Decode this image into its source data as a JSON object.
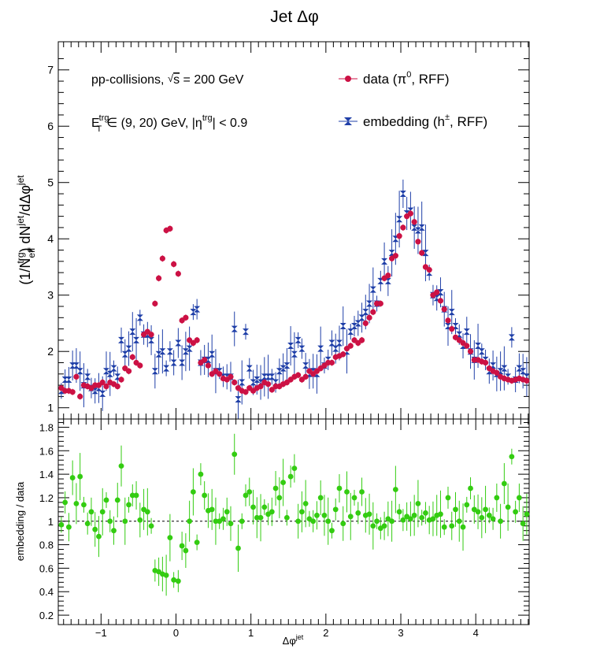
{
  "title": "Jet Δφ",
  "legend": {
    "data_label": "data (π⁰, RFF)",
    "embed_label": "embedding (h±, RFF)"
  },
  "annotations": {
    "line1": "pp-collisions, √s = 200 GeV",
    "line2": "E_T^trg ∈ (9, 20) GeV, |η^trg| < 0.9"
  },
  "colors": {
    "data": "#cc1144",
    "embed": "#1f3fa8",
    "ratio": "#33cc11"
  },
  "chart_data": [
    {
      "type": "scatter",
      "title": "Jet Δφ",
      "xlabel": "Δφ^jet",
      "ylabel": "(1/N_eff^trg) dN^jet/dΔφ^jet",
      "xlim": [
        -1.5708,
        4.7124
      ],
      "ylim": [
        0.8,
        7.5
      ],
      "x_ticks": [
        "−1",
        "0",
        "1",
        "2",
        "3",
        "4"
      ],
      "y_ticks": [
        "1",
        "2",
        "3",
        "4",
        "5",
        "6",
        "7"
      ],
      "legend_position": "top-right",
      "series": [
        {
          "name": "data (π⁰, RFF)",
          "x": [
            -1.53,
            -1.48,
            -1.43,
            -1.38,
            -1.33,
            -1.28,
            -1.23,
            -1.18,
            -1.13,
            -1.08,
            -1.03,
            -0.98,
            -0.93,
            -0.88,
            -0.83,
            -0.78,
            -0.73,
            -0.68,
            -0.63,
            -0.58,
            -0.53,
            -0.48,
            -0.43,
            -0.38,
            -0.33,
            -0.28,
            -0.23,
            -0.18,
            -0.13,
            -0.08,
            -0.03,
            0.03,
            0.08,
            0.13,
            0.18,
            0.23,
            0.28,
            0.33,
            0.38,
            0.43,
            0.48,
            0.53,
            0.58,
            0.63,
            0.68,
            0.73,
            0.78,
            0.83,
            0.88,
            0.93,
            0.98,
            1.03,
            1.08,
            1.13,
            1.18,
            1.23,
            1.28,
            1.33,
            1.38,
            1.43,
            1.48,
            1.53,
            1.58,
            1.63,
            1.68,
            1.73,
            1.78,
            1.83,
            1.88,
            1.93,
            1.98,
            2.03,
            2.08,
            2.13,
            2.18,
            2.23,
            2.28,
            2.33,
            2.38,
            2.43,
            2.48,
            2.53,
            2.58,
            2.63,
            2.68,
            2.73,
            2.78,
            2.83,
            2.88,
            2.93,
            2.98,
            3.03,
            3.08,
            3.13,
            3.18,
            3.23,
            3.28,
            3.33,
            3.38,
            3.43,
            3.48,
            3.53,
            3.58,
            3.63,
            3.68,
            3.73,
            3.78,
            3.83,
            3.88,
            3.93,
            3.98,
            4.03,
            4.08,
            4.13,
            4.18,
            4.23,
            4.28,
            4.33,
            4.38,
            4.43,
            4.48,
            4.53,
            4.58,
            4.63,
            4.68
          ],
          "y": [
            1.35,
            1.3,
            1.3,
            1.28,
            1.55,
            1.2,
            1.4,
            1.38,
            1.35,
            1.4,
            1.4,
            1.45,
            1.38,
            1.45,
            1.42,
            1.38,
            1.5,
            1.7,
            1.65,
            1.9,
            1.8,
            1.75,
            2.3,
            2.35,
            2.3,
            2.85,
            3.3,
            3.65,
            4.15,
            4.18,
            3.55,
            3.38,
            2.55,
            2.6,
            2.2,
            2.15,
            2.2,
            1.8,
            1.85,
            1.75,
            1.6,
            1.65,
            1.6,
            1.52,
            1.5,
            1.55,
            1.45,
            1.35,
            1.3,
            1.28,
            1.35,
            1.3,
            1.35,
            1.38,
            1.45,
            1.42,
            1.32,
            1.38,
            1.38,
            1.42,
            1.45,
            1.5,
            1.55,
            1.58,
            1.5,
            1.55,
            1.65,
            1.6,
            1.65,
            1.7,
            1.75,
            1.8,
            1.8,
            1.9,
            1.92,
            1.95,
            2.05,
            2.1,
            2.2,
            2.15,
            2.2,
            2.5,
            2.6,
            2.7,
            2.85,
            2.85,
            3.3,
            3.35,
            3.65,
            3.7,
            4.05,
            4.2,
            4.4,
            4.45,
            4.3,
            3.95,
            3.75,
            3.5,
            3.45,
            3.0,
            3.05,
            2.9,
            2.75,
            2.55,
            2.4,
            2.25,
            2.2,
            2.15,
            2.1,
            2.0,
            1.85,
            1.85,
            1.82,
            1.8,
            1.7,
            1.65,
            1.62,
            1.55,
            1.52,
            1.5,
            1.48,
            1.5,
            1.52,
            1.5,
            1.48
          ]
        },
        {
          "name": "embedding (h±, RFF)",
          "x": [
            -1.53,
            -1.48,
            -1.43,
            -1.38,
            -1.33,
            -1.28,
            -1.23,
            -1.18,
            -1.13,
            -1.08,
            -1.03,
            -0.98,
            -0.93,
            -0.88,
            -0.83,
            -0.78,
            -0.73,
            -0.68,
            -0.63,
            -0.58,
            -0.53,
            -0.48,
            -0.43,
            -0.38,
            -0.33,
            -0.28,
            -0.23,
            -0.18,
            -0.13,
            -0.08,
            -0.03,
            0.03,
            0.08,
            0.13,
            0.18,
            0.23,
            0.28,
            0.33,
            0.38,
            0.43,
            0.48,
            0.53,
            0.58,
            0.63,
            0.68,
            0.73,
            0.78,
            0.83,
            0.88,
            0.93,
            0.98,
            1.03,
            1.08,
            1.13,
            1.18,
            1.23,
            1.28,
            1.33,
            1.38,
            1.43,
            1.48,
            1.53,
            1.58,
            1.63,
            1.68,
            1.73,
            1.78,
            1.83,
            1.88,
            1.93,
            1.98,
            2.03,
            2.08,
            2.13,
            2.18,
            2.23,
            2.28,
            2.33,
            2.38,
            2.43,
            2.48,
            2.53,
            2.58,
            2.63,
            2.68,
            2.73,
            2.78,
            2.83,
            2.88,
            2.93,
            2.98,
            3.03,
            3.08,
            3.13,
            3.18,
            3.23,
            3.28,
            3.33,
            3.38,
            3.43,
            3.48,
            3.53,
            3.58,
            3.63,
            3.68,
            3.73,
            3.78,
            3.83,
            3.88,
            3.93,
            3.98,
            4.03,
            4.08,
            4.13,
            4.18,
            4.23,
            4.28,
            4.33,
            4.38,
            4.43,
            4.48,
            4.53,
            4.58,
            4.63,
            4.68
          ],
          "y": [
            1.3,
            1.5,
            1.5,
            1.75,
            1.75,
            1.65,
            1.4,
            1.55,
            1.35,
            1.3,
            1.35,
            1.25,
            1.65,
            1.6,
            1.7,
            1.55,
            2.2,
            1.95,
            2.05,
            2.35,
            2.2,
            2.6,
            2.3,
            2.3,
            2.2,
            1.65,
            1.95,
            2.0,
            1.7,
            2.0,
            1.8,
            2.15,
            1.8,
            2.0,
            2.05,
            2.7,
            2.75,
            1.8,
            1.85,
            1.85,
            1.95,
            1.65,
            1.65,
            1.55,
            1.55,
            1.55,
            2.4,
            1.15,
            1.45,
            2.35,
            1.7,
            1.45,
            1.5,
            1.45,
            1.55,
            1.55,
            1.55,
            1.45,
            1.65,
            1.7,
            1.75,
            2.1,
            1.95,
            2.2,
            2.05,
            1.75,
            1.6,
            1.65,
            1.6,
            2.05,
            1.75,
            1.85,
            2.15,
            2.05,
            2.15,
            2.45,
            2.0,
            2.35,
            2.45,
            2.5,
            2.6,
            2.7,
            2.85,
            3.1,
            2.85,
            3.25,
            3.6,
            3.25,
            3.75,
            4.0,
            4.35,
            4.8,
            4.45,
            4.5,
            4.2,
            4.15,
            4.2,
            3.75,
            3.4,
            3.0,
            2.95,
            3.05,
            2.75,
            2.45,
            2.7,
            2.45,
            2.3,
            2.1,
            2.35,
            2.0,
            1.85,
            2.1,
            2.0,
            1.85,
            1.65,
            1.75,
            1.6,
            1.65,
            1.7,
            1.55,
            2.25,
            1.5,
            1.7,
            1.65,
            1.55
          ]
        }
      ]
    },
    {
      "type": "scatter",
      "xlabel": "Δφ^jet",
      "ylabel": "embedding / data",
      "xlim": [
        -1.5708,
        4.7124
      ],
      "ylim": [
        0.12,
        1.87
      ],
      "x_ticks": [
        "−1",
        "0",
        "1",
        "2",
        "3",
        "4"
      ],
      "y_ticks": [
        "0.2",
        "0.4",
        "0.6",
        "0.8",
        "1",
        "1.2",
        "1.4",
        "1.6",
        "1.8"
      ],
      "reference_line": 1,
      "series": [
        {
          "name": "embedding / data",
          "x": [
            -1.53,
            -1.48,
            -1.43,
            -1.38,
            -1.33,
            -1.28,
            -1.23,
            -1.18,
            -1.13,
            -1.08,
            -1.03,
            -0.98,
            -0.93,
            -0.88,
            -0.83,
            -0.78,
            -0.73,
            -0.68,
            -0.63,
            -0.58,
            -0.53,
            -0.48,
            -0.43,
            -0.38,
            -0.33,
            -0.28,
            -0.23,
            -0.18,
            -0.13,
            -0.08,
            -0.03,
            0.03,
            0.08,
            0.13,
            0.18,
            0.23,
            0.28,
            0.33,
            0.38,
            0.43,
            0.48,
            0.53,
            0.58,
            0.63,
            0.68,
            0.73,
            0.78,
            0.83,
            0.88,
            0.93,
            0.98,
            1.03,
            1.08,
            1.13,
            1.18,
            1.23,
            1.28,
            1.33,
            1.38,
            1.43,
            1.48,
            1.53,
            1.58,
            1.63,
            1.68,
            1.73,
            1.78,
            1.83,
            1.88,
            1.93,
            1.98,
            2.03,
            2.08,
            2.13,
            2.18,
            2.23,
            2.28,
            2.33,
            2.38,
            2.43,
            2.48,
            2.53,
            2.58,
            2.63,
            2.68,
            2.73,
            2.78,
            2.83,
            2.88,
            2.93,
            2.98,
            3.03,
            3.08,
            3.13,
            3.18,
            3.23,
            3.28,
            3.33,
            3.38,
            3.43,
            3.48,
            3.53,
            3.58,
            3.63,
            3.68,
            3.73,
            3.78,
            3.83,
            3.88,
            3.93,
            3.98,
            4.03,
            4.08,
            4.13,
            4.18,
            4.23,
            4.28,
            4.33,
            4.38,
            4.43,
            4.48,
            4.53,
            4.58,
            4.63,
            4.68
          ],
          "y": [
            0.97,
            1.16,
            0.95,
            1.37,
            1.15,
            1.38,
            1.14,
            0.98,
            1.08,
            0.93,
            0.87,
            1.08,
            1.18,
            1.0,
            0.92,
            1.18,
            1.47,
            1.0,
            1.14,
            1.22,
            1.22,
            1.01,
            1.1,
            1.08,
            0.96,
            0.58,
            0.57,
            0.55,
            0.54,
            0.86,
            0.5,
            0.49,
            0.79,
            0.75,
            1.0,
            1.25,
            0.82,
            1.4,
            1.22,
            1.09,
            1.1,
            1.0,
            1.0,
            1.02,
            1.08,
            0.98,
            1.57,
            0.77,
            1.0,
            1.22,
            1.25,
            1.12,
            1.03,
            1.03,
            1.12,
            1.06,
            1.08,
            1.28,
            1.2,
            1.33,
            1.03,
            1.38,
            1.45,
            1.0,
            1.08,
            1.15,
            1.02,
            1.0,
            1.05,
            1.2,
            1.05,
            1.0,
            0.92,
            1.1,
            1.28,
            0.98,
            1.25,
            1.04,
            1.2,
            1.07,
            1.25,
            1.05,
            1.06,
            0.96,
            1.0,
            0.94,
            0.96,
            1.02,
            1.0,
            1.27,
            1.08,
            1.01,
            1.04,
            1.02,
            1.05,
            1.15,
            1.03,
            1.07,
            1.01,
            1.02,
            1.05,
            1.06,
            0.95,
            1.2,
            0.96,
            1.1,
            1.0,
            0.95,
            1.14,
            1.28,
            1.1,
            1.08,
            1.03,
            1.1,
            1.05,
            1.02,
            1.2,
            1.0,
            1.32,
            1.12,
            1.55,
            1.08,
            1.2,
            0.98,
            1.06
          ]
        }
      ]
    }
  ]
}
